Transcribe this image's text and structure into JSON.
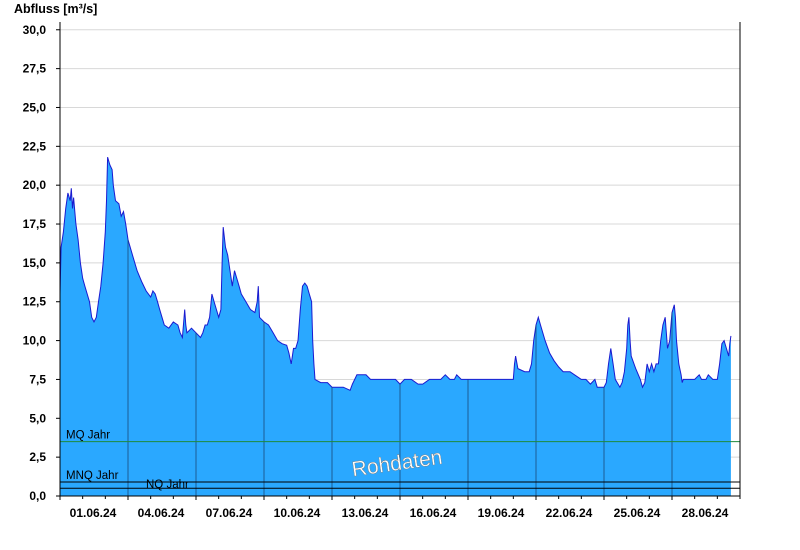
{
  "chart_data": {
    "type": "area",
    "title": "",
    "ylabel": "Abfluss [m³/s]",
    "xlabel": "",
    "ylim": [
      0,
      30.5
    ],
    "y_ticks": [
      "0,0",
      "2,5",
      "5,0",
      "7,5",
      "10,0",
      "12,5",
      "15,0",
      "17,5",
      "20,0",
      "22,5",
      "25,0",
      "27,5",
      "30,0"
    ],
    "x_tick_labels": [
      "01.06.24",
      "04.06.24",
      "07.06.24",
      "10.06.24",
      "13.06.24",
      "16.06.24",
      "19.06.24",
      "22.06.24",
      "25.06.24",
      "28.06.24"
    ],
    "x_start_day": 1,
    "x_end_day": 31,
    "grid": true,
    "watermark": "Rohdaten",
    "colors": {
      "fill": "#2aa8ff",
      "line": "#1a1ad0",
      "mq": "#1f8a3c",
      "reference": "#000000",
      "grid": "#d8d8d8"
    },
    "reference_lines": [
      {
        "label": "MQ Jahr",
        "value": 3.5
      },
      {
        "label": "MNQ Jahr",
        "value": 0.9
      },
      {
        "label": "NQ Jahr",
        "value": 0.5
      }
    ],
    "series": [
      {
        "points": [
          [
            1.0,
            13.0
          ],
          [
            1.05,
            16.0
          ],
          [
            1.15,
            17.0
          ],
          [
            1.25,
            18.5
          ],
          [
            1.35,
            19.5
          ],
          [
            1.45,
            19.0
          ],
          [
            1.5,
            19.8
          ],
          [
            1.55,
            18.5
          ],
          [
            1.6,
            19.2
          ],
          [
            1.7,
            17.5
          ],
          [
            1.8,
            16.5
          ],
          [
            1.9,
            15.0
          ],
          [
            2.0,
            14.0
          ],
          [
            2.1,
            13.5
          ],
          [
            2.2,
            13.0
          ],
          [
            2.3,
            12.5
          ],
          [
            2.4,
            11.5
          ],
          [
            2.5,
            11.2
          ],
          [
            2.6,
            11.5
          ],
          [
            2.7,
            12.5
          ],
          [
            2.8,
            13.5
          ],
          [
            2.9,
            15.0
          ],
          [
            3.0,
            17.0
          ],
          [
            3.05,
            19.0
          ],
          [
            3.1,
            21.8
          ],
          [
            3.2,
            21.3
          ],
          [
            3.3,
            21.0
          ],
          [
            3.35,
            20.0
          ],
          [
            3.45,
            19.0
          ],
          [
            3.6,
            18.8
          ],
          [
            3.7,
            18.0
          ],
          [
            3.8,
            18.3
          ],
          [
            3.9,
            17.5
          ],
          [
            4.0,
            16.5
          ],
          [
            4.2,
            15.5
          ],
          [
            4.4,
            14.5
          ],
          [
            4.6,
            13.8
          ],
          [
            4.8,
            13.2
          ],
          [
            5.0,
            12.8
          ],
          [
            5.1,
            13.2
          ],
          [
            5.2,
            13.0
          ],
          [
            5.3,
            12.5
          ],
          [
            5.4,
            12.0
          ],
          [
            5.5,
            11.5
          ],
          [
            5.6,
            11.0
          ],
          [
            5.8,
            10.8
          ],
          [
            6.0,
            11.2
          ],
          [
            6.2,
            11.0
          ],
          [
            6.3,
            10.5
          ],
          [
            6.4,
            10.2
          ],
          [
            6.5,
            12.0
          ],
          [
            6.55,
            11.0
          ],
          [
            6.6,
            10.5
          ],
          [
            6.8,
            10.8
          ],
          [
            7.0,
            10.5
          ],
          [
            7.2,
            10.2
          ],
          [
            7.3,
            10.5
          ],
          [
            7.4,
            11.0
          ],
          [
            7.5,
            11.0
          ],
          [
            7.6,
            11.5
          ],
          [
            7.7,
            13.0
          ],
          [
            7.8,
            12.5
          ],
          [
            7.9,
            12.0
          ],
          [
            8.0,
            11.5
          ],
          [
            8.1,
            12.0
          ],
          [
            8.15,
            15.0
          ],
          [
            8.2,
            17.3
          ],
          [
            8.3,
            16.0
          ],
          [
            8.4,
            15.5
          ],
          [
            8.5,
            14.5
          ],
          [
            8.6,
            13.5
          ],
          [
            8.7,
            14.5
          ],
          [
            8.8,
            14.0
          ],
          [
            8.9,
            13.5
          ],
          [
            9.0,
            13.0
          ],
          [
            9.2,
            12.5
          ],
          [
            9.4,
            12.0
          ],
          [
            9.6,
            11.8
          ],
          [
            9.7,
            12.5
          ],
          [
            9.75,
            13.5
          ],
          [
            9.8,
            11.5
          ],
          [
            10.0,
            11.2
          ],
          [
            10.2,
            11.0
          ],
          [
            10.4,
            10.5
          ],
          [
            10.6,
            10.0
          ],
          [
            10.8,
            9.8
          ],
          [
            11.0,
            9.7
          ],
          [
            11.1,
            9.2
          ],
          [
            11.2,
            8.5
          ],
          [
            11.3,
            9.5
          ],
          [
            11.4,
            9.5
          ],
          [
            11.5,
            10.0
          ],
          [
            11.6,
            12.0
          ],
          [
            11.7,
            13.5
          ],
          [
            11.8,
            13.7
          ],
          [
            11.9,
            13.5
          ],
          [
            12.0,
            13.0
          ],
          [
            12.1,
            12.5
          ],
          [
            12.15,
            10.0
          ],
          [
            12.2,
            8.5
          ],
          [
            12.25,
            7.5
          ],
          [
            12.5,
            7.3
          ],
          [
            12.8,
            7.3
          ],
          [
            13.0,
            7.0
          ],
          [
            13.5,
            7.0
          ],
          [
            13.8,
            6.8
          ],
          [
            13.9,
            7.2
          ],
          [
            14.0,
            7.5
          ],
          [
            14.1,
            7.8
          ],
          [
            14.5,
            7.8
          ],
          [
            14.7,
            7.5
          ],
          [
            15.0,
            7.5
          ],
          [
            15.5,
            7.5
          ],
          [
            15.8,
            7.5
          ],
          [
            16.0,
            7.2
          ],
          [
            16.2,
            7.5
          ],
          [
            16.5,
            7.5
          ],
          [
            16.8,
            7.2
          ],
          [
            17.0,
            7.2
          ],
          [
            17.3,
            7.5
          ],
          [
            17.6,
            7.5
          ],
          [
            17.8,
            7.5
          ],
          [
            18.0,
            7.8
          ],
          [
            18.2,
            7.5
          ],
          [
            18.4,
            7.5
          ],
          [
            18.5,
            7.8
          ],
          [
            18.7,
            7.5
          ],
          [
            19.0,
            7.5
          ],
          [
            19.5,
            7.5
          ],
          [
            20.0,
            7.5
          ],
          [
            20.5,
            7.5
          ],
          [
            21.0,
            7.5
          ],
          [
            21.05,
            8.5
          ],
          [
            21.1,
            9.0
          ],
          [
            21.2,
            8.2
          ],
          [
            21.5,
            8.0
          ],
          [
            21.7,
            8.0
          ],
          [
            21.8,
            8.5
          ],
          [
            21.9,
            10.0
          ],
          [
            22.0,
            11.0
          ],
          [
            22.1,
            11.5
          ],
          [
            22.2,
            11.0
          ],
          [
            22.4,
            10.0
          ],
          [
            22.6,
            9.2
          ],
          [
            22.8,
            8.7
          ],
          [
            23.0,
            8.3
          ],
          [
            23.2,
            8.0
          ],
          [
            23.5,
            8.0
          ],
          [
            23.7,
            7.8
          ],
          [
            24.0,
            7.5
          ],
          [
            24.2,
            7.5
          ],
          [
            24.4,
            7.2
          ],
          [
            24.6,
            7.5
          ],
          [
            24.7,
            7.0
          ],
          [
            24.9,
            7.0
          ],
          [
            25.0,
            7.0
          ],
          [
            25.1,
            7.3
          ],
          [
            25.2,
            8.5
          ],
          [
            25.3,
            9.5
          ],
          [
            25.4,
            8.5
          ],
          [
            25.5,
            7.5
          ],
          [
            25.7,
            7.0
          ],
          [
            25.8,
            7.3
          ],
          [
            25.9,
            8.0
          ],
          [
            26.0,
            9.5
          ],
          [
            26.05,
            11.0
          ],
          [
            26.1,
            11.5
          ],
          [
            26.15,
            10.0
          ],
          [
            26.2,
            9.0
          ],
          [
            26.4,
            8.2
          ],
          [
            26.6,
            7.5
          ],
          [
            26.7,
            7.0
          ],
          [
            26.8,
            7.3
          ],
          [
            26.9,
            8.5
          ],
          [
            27.0,
            8.0
          ],
          [
            27.1,
            8.5
          ],
          [
            27.2,
            8.0
          ],
          [
            27.3,
            8.5
          ],
          [
            27.4,
            8.5
          ],
          [
            27.5,
            10.0
          ],
          [
            27.6,
            11.0
          ],
          [
            27.7,
            11.5
          ],
          [
            27.8,
            9.5
          ],
          [
            27.9,
            10.0
          ],
          [
            28.0,
            11.8
          ],
          [
            28.1,
            12.3
          ],
          [
            28.15,
            11.5
          ],
          [
            28.2,
            10.0
          ],
          [
            28.3,
            8.5
          ],
          [
            28.4,
            7.8
          ],
          [
            28.45,
            7.3
          ],
          [
            28.5,
            7.5
          ],
          [
            28.7,
            7.5
          ],
          [
            29.0,
            7.5
          ],
          [
            29.2,
            7.8
          ],
          [
            29.3,
            7.5
          ],
          [
            29.5,
            7.5
          ],
          [
            29.6,
            7.8
          ],
          [
            29.8,
            7.5
          ],
          [
            30.0,
            7.5
          ],
          [
            30.1,
            8.5
          ],
          [
            30.2,
            9.8
          ],
          [
            30.3,
            10.0
          ],
          [
            30.4,
            9.5
          ],
          [
            30.5,
            9.0
          ],
          [
            30.55,
            9.8
          ],
          [
            30.6,
            10.3
          ]
        ]
      }
    ]
  }
}
